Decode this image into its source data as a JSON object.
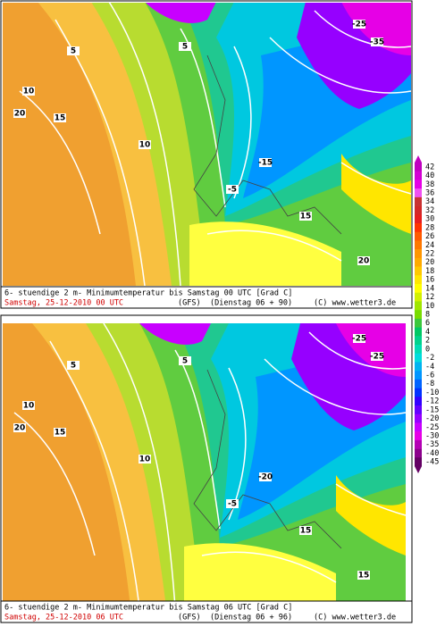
{
  "panels": [
    {
      "caption": {
        "line1": "6- stuendige 2 m- Minimumtemperatur bis Samstag 00 UTC [Grad C]",
        "date": "Samstag, 25-12-2010   00 UTC",
        "model": "(GFS)",
        "run": "(Dienstag 06 + 90)",
        "copyright": "(C) www.wetter3.de"
      },
      "contour_labels": [
        "10",
        "15",
        "5",
        "10",
        "20",
        "5",
        "-5",
        "-25",
        "-35",
        "15",
        "20",
        "-15"
      ]
    },
    {
      "caption": {
        "line1": "6- stuendige 2 m- Minimumtemperatur bis Samstag 06 UTC [Grad C]",
        "date": "Samstag, 25-12-2010   06 UTC",
        "model": "(GFS)",
        "run": "(Dienstag 06 + 96)",
        "copyright": "(C) www.wetter3.de"
      },
      "contour_labels": [
        "10",
        "15",
        "5",
        "10",
        "20",
        "5",
        "-5",
        "-25",
        "-25",
        "15",
        "15",
        "-20"
      ]
    }
  ],
  "legend": {
    "labels": [
      42,
      40,
      38,
      36,
      34,
      32,
      30,
      28,
      26,
      24,
      22,
      20,
      18,
      16,
      14,
      12,
      10,
      8,
      6,
      4,
      2,
      0,
      -2,
      -4,
      -6,
      -8,
      -10,
      -12,
      -15,
      -20,
      -25,
      -30,
      -35,
      -40,
      -45
    ],
    "colors": [
      "#c000c0",
      "#d400d4",
      "#e600e6",
      "#f050f0",
      "#c83232",
      "#d22828",
      "#e61e1e",
      "#ff3200",
      "#ff5a00",
      "#ff7800",
      "#ff9600",
      "#ffaa00",
      "#ffc800",
      "#ffe600",
      "#ffff00",
      "#d2f000",
      "#a0e600",
      "#78dc00",
      "#3cc83c",
      "#00c864",
      "#00d28c",
      "#00dcb4",
      "#00dcdc",
      "#00b4f0",
      "#0096ff",
      "#0064ff",
      "#0032ff",
      "#3200ff",
      "#6400ff",
      "#9600ff",
      "#c800ff",
      "#e600e6",
      "#b400b4",
      "#8c008c",
      "#640064"
    ]
  }
}
